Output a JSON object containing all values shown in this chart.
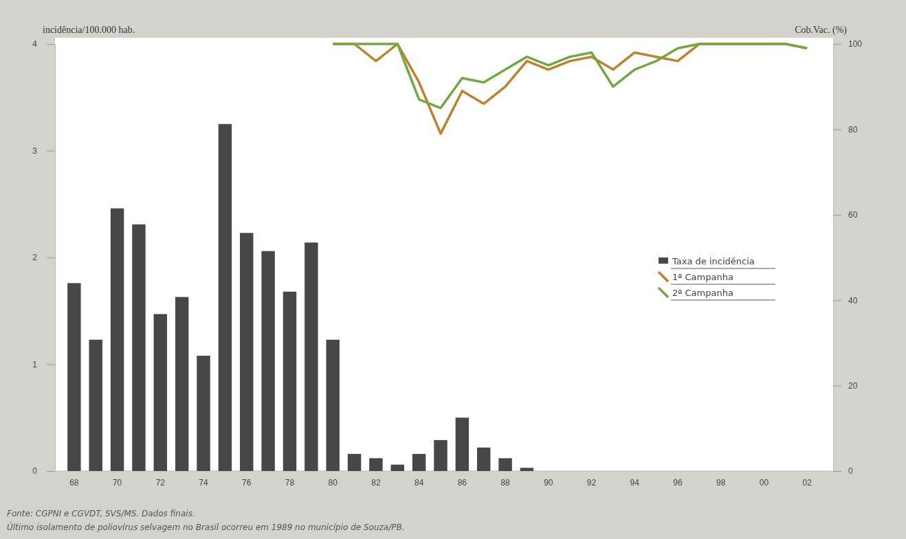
{
  "chart_data": {
    "type": "bar",
    "ylabel": "incidência/100.000 hab.",
    "y2label": "Cob.Vac. (%)",
    "categories": [
      "68",
      null,
      "70",
      null,
      "72",
      null,
      "74",
      null,
      "76",
      null,
      "78",
      null,
      "80",
      null,
      "82",
      null,
      "84",
      null,
      "86",
      null,
      "88",
      null,
      "90",
      null,
      "92",
      null,
      "94",
      null,
      "96",
      null,
      "98",
      null,
      "00",
      null,
      "02"
    ],
    "series": [
      {
        "name": "Taxa de incidência",
        "color": "#474747",
        "values": [
          1.76,
          1.23,
          2.46,
          2.31,
          1.47,
          1.63,
          1.08,
          3.25,
          2.23,
          2.06,
          1.68,
          2.14,
          1.23,
          0.16,
          0.12,
          0.06,
          0.16,
          0.29,
          0.5,
          0.22,
          0.12,
          0.03,
          null,
          null,
          null,
          null,
          null,
          null,
          null,
          null,
          null,
          null,
          null,
          null,
          null
        ]
      },
      {
        "name": "1ª Campanha",
        "type": "line",
        "axis": "y2",
        "color": "#c0812e",
        "values": [
          null,
          null,
          null,
          null,
          null,
          null,
          null,
          null,
          null,
          null,
          null,
          null,
          100,
          100,
          96,
          100,
          91,
          79,
          89,
          86,
          90,
          96,
          94,
          96,
          97,
          94,
          98,
          97,
          96,
          100,
          100,
          100,
          100,
          100,
          99
        ]
      },
      {
        "name": "2ª Campanha",
        "type": "line",
        "axis": "y2",
        "color": "#72a843",
        "values": [
          null,
          null,
          null,
          null,
          null,
          null,
          null,
          null,
          null,
          null,
          null,
          null,
          100,
          100,
          100,
          100,
          87,
          85,
          92,
          91,
          94,
          97,
          95,
          97,
          98,
          90,
          94,
          96,
          99,
          100,
          100,
          100,
          100,
          100,
          99
        ]
      }
    ],
    "ylim": [
      0,
      4
    ],
    "yticks": [
      0,
      1,
      2,
      3,
      4
    ],
    "y2lim": [
      0,
      100
    ],
    "y2ticks": [
      0,
      20,
      40,
      60,
      80,
      100
    ],
    "legend": "right",
    "grid": false,
    "marker": "none",
    "line_style": "solid",
    "annotations": [
      "Fonte: CGPNI e CGVDT, SVS/MS. Dados finais.",
      "Último isolamento de poliovírus selvagem no Brasil ocorreu em 1989 no município de Souza/PB."
    ]
  }
}
